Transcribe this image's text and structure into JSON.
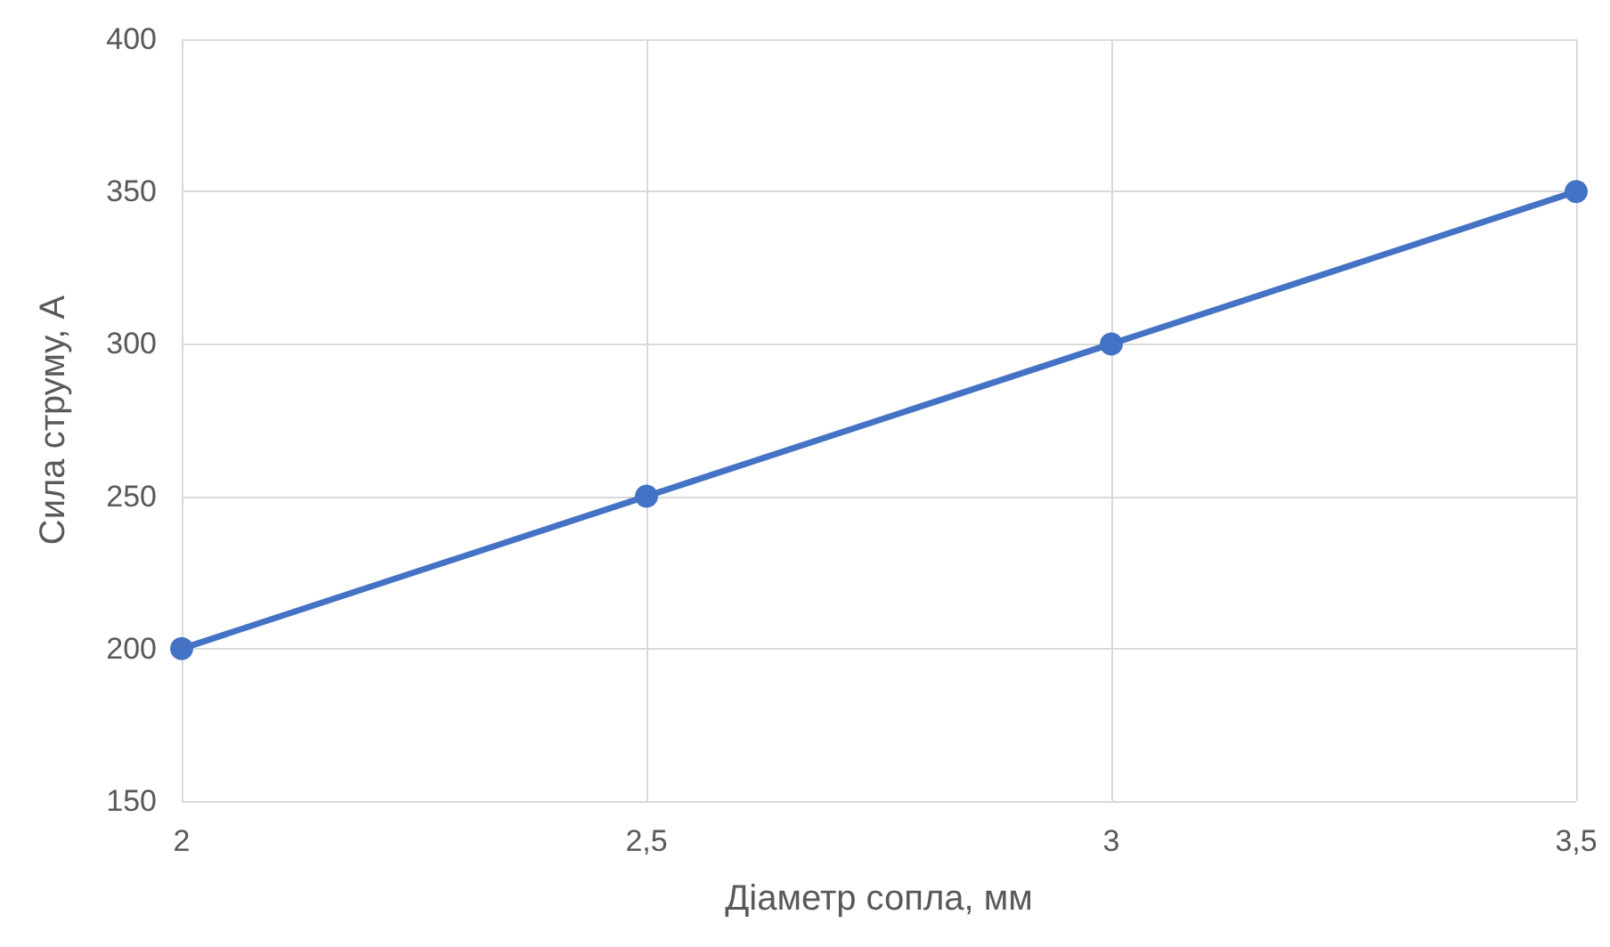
{
  "chart_data": {
    "type": "line",
    "xlabel": "Діаметр сопла, мм",
    "ylabel": "Сила струму, А",
    "x": [
      2,
      2.5,
      3,
      3.5
    ],
    "series": [
      {
        "color": "#4472c4",
        "values": [
          200,
          250,
          300,
          350
        ]
      }
    ],
    "xlim": [
      2,
      3.5
    ],
    "xticks": [
      2,
      {
        "value": 2.5,
        "label": "2,5"
      },
      3,
      {
        "value": 3.5,
        "label": "3,5"
      }
    ],
    "ylim": [
      150,
      400
    ],
    "yticks": [
      150,
      200,
      250,
      300,
      350,
      400
    ],
    "grid": true,
    "marker": "circle",
    "line_style": "solid"
  }
}
